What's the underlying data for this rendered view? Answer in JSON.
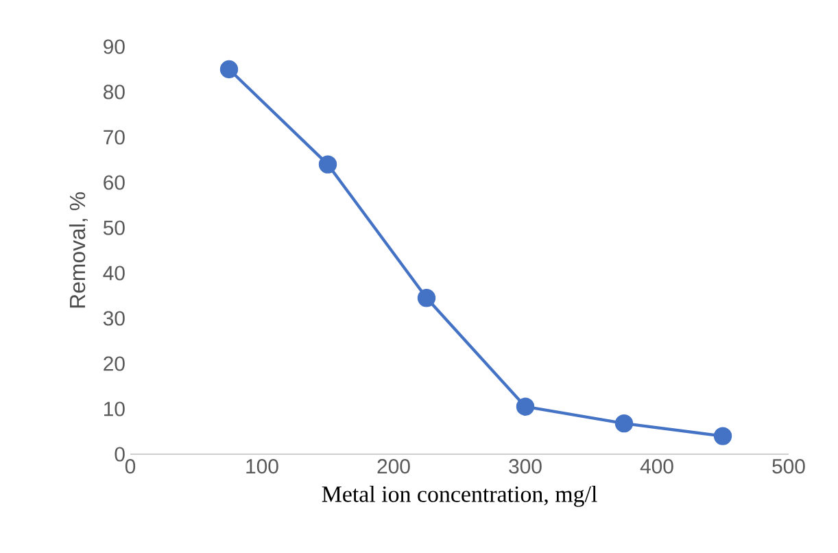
{
  "chart_data": {
    "type": "line",
    "xlabel": "Metal ion concentration, mg/l",
    "ylabel": "Removal, %",
    "x": [
      75,
      150,
      225,
      300,
      375,
      450
    ],
    "series": [
      {
        "color": "#4472c4",
        "values": [
          85,
          64,
          34.5,
          10.5,
          6.8,
          4
        ]
      }
    ],
    "xlim": [
      0,
      500
    ],
    "xticks": [
      0,
      100,
      200,
      300,
      400,
      500
    ],
    "ylim": [
      0,
      90
    ],
    "yticks": [
      0,
      10,
      20,
      30,
      40,
      50,
      60,
      70,
      80,
      90
    ],
    "grid": false,
    "marker": "circle",
    "line_style": "solid"
  }
}
